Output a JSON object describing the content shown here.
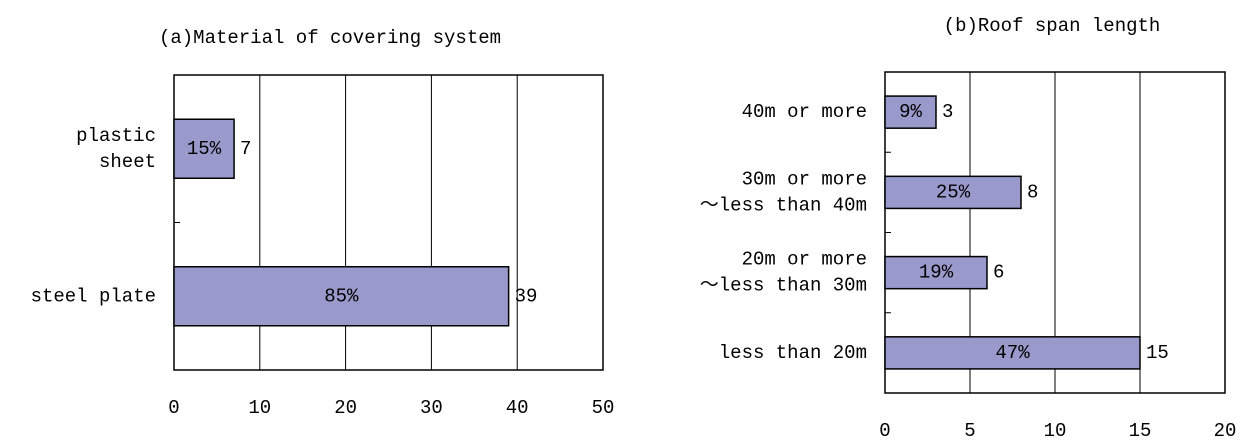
{
  "chart_data": [
    {
      "type": "hbar",
      "title": "(a)Material of covering system",
      "categories": [
        [
          "plastic",
          "sheet"
        ],
        [
          "steel plate"
        ]
      ],
      "values": [
        7,
        39
      ],
      "percent_labels": [
        "15%",
        "85%"
      ],
      "color": "#9999cc",
      "xlim": [
        0,
        50
      ],
      "xticks": [
        0,
        10,
        20,
        30,
        40,
        50
      ],
      "grid": true
    },
    {
      "type": "hbar",
      "title": "(b)Roof span length",
      "categories": [
        [
          "40m or more"
        ],
        [
          "30m or more",
          "～less than 40m"
        ],
        [
          "20m or more",
          "～less than 30m"
        ],
        [
          "less than 20m"
        ]
      ],
      "values": [
        3,
        8,
        6,
        15
      ],
      "percent_labels": [
        "9%",
        "25%",
        "19%",
        "47%"
      ],
      "color": "#9999cc",
      "xlim": [
        0,
        20
      ],
      "xticks": [
        0,
        5,
        10,
        15,
        20
      ],
      "grid": true
    }
  ]
}
